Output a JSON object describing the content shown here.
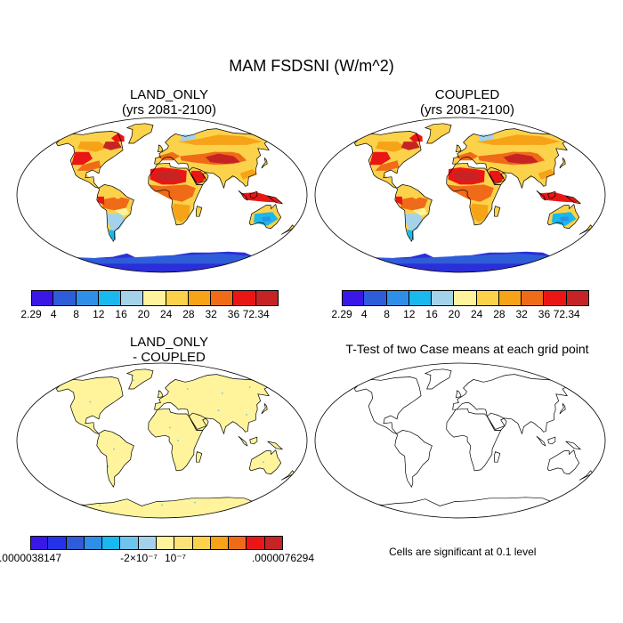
{
  "title": "MAM FSDSNI (W/m^2)",
  "panels": [
    {
      "name": "LAND_ONLY",
      "subtitle": "(yrs 2081-2100)"
    },
    {
      "name": "COUPLED",
      "subtitle": "(yrs 2081-2100)"
    },
    {
      "name": "LAND_ONLY",
      "subtitle": "- COUPLED"
    },
    {
      "name": "T-Test of two Case means at each grid point",
      "subtitle": ""
    }
  ],
  "colorbar_top": {
    "labels": [
      "2.29",
      "4",
      "8",
      "12",
      "16",
      "20",
      "24",
      "28",
      "32",
      "36",
      "72.34"
    ],
    "colors": [
      "#3a17e6",
      "#2f5cd9",
      "#2f8fe8",
      "#19b8ee",
      "#a4d2ea",
      "#fff49b",
      "#fbd24a",
      "#f7a318",
      "#f06b18",
      "#ea1616",
      "#c62424"
    ]
  },
  "colorbar_diff": {
    "labels": [
      ".0000038147",
      "-2×10⁻⁷",
      "10⁻⁷",
      ".0000076294"
    ],
    "colors": [
      "#3a17e6",
      "#2433e8",
      "#2f5cd9",
      "#2f8fe8",
      "#19b8ee",
      "#6ec4ee",
      "#a4d2ea",
      "#fff49b",
      "#fbe37a",
      "#fbd24a",
      "#f7a318",
      "#f06b18",
      "#ea1616",
      "#c62424"
    ]
  },
  "note": "Cells are significant at 0.1 level",
  "colors": {
    "land_diff": "#fff49b",
    "antarctica": "#2b2fd9",
    "coast": "#000000"
  }
}
